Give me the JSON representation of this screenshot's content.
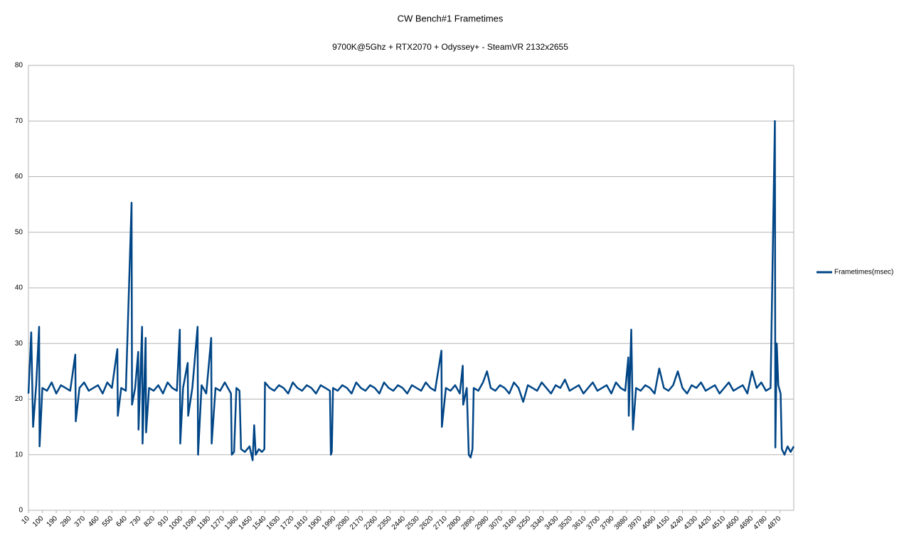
{
  "chart_data": {
    "type": "line",
    "title": "CW Bench#1 Frametimes",
    "subtitle": "9700K@5Ghz + RTX2070 + Odyssey+ - SteamVR 2132x2655",
    "x": [
      10,
      28,
      40,
      60,
      79,
      82,
      100,
      130,
      160,
      190,
      220,
      250,
      280,
      313,
      316,
      340,
      370,
      400,
      430,
      460,
      490,
      520,
      550,
      585,
      588,
      610,
      640,
      677,
      680,
      700,
      720,
      722,
      745,
      748,
      768,
      771,
      790,
      820,
      850,
      880,
      910,
      940,
      970,
      989,
      992,
      1010,
      1040,
      1043,
      1070,
      1104,
      1107,
      1130,
      1160,
      1192,
      1195,
      1220,
      1250,
      1280,
      1300,
      1320,
      1325,
      1340,
      1355,
      1375,
      1385,
      1410,
      1440,
      1460,
      1470,
      1480,
      1500,
      1520,
      1536,
      1540,
      1570,
      1600,
      1630,
      1660,
      1690,
      1720,
      1750,
      1780,
      1810,
      1840,
      1870,
      1900,
      1930,
      1960,
      1966,
      1972,
      1980,
      2010,
      2040,
      2070,
      2100,
      2130,
      2160,
      2190,
      2220,
      2250,
      2280,
      2310,
      2340,
      2370,
      2400,
      2430,
      2460,
      2490,
      2520,
      2550,
      2580,
      2610,
      2640,
      2681,
      2684,
      2710,
      2740,
      2770,
      2800,
      2819,
      2822,
      2845,
      2858,
      2870,
      2882,
      2890,
      2920,
      2950,
      2976,
      3000,
      3030,
      3060,
      3090,
      3120,
      3150,
      3180,
      3210,
      3240,
      3270,
      3300,
      3330,
      3360,
      3390,
      3420,
      3450,
      3480,
      3510,
      3540,
      3570,
      3600,
      3630,
      3660,
      3690,
      3720,
      3750,
      3780,
      3810,
      3840,
      3870,
      3890,
      3893,
      3909,
      3920,
      3940,
      3970,
      4000,
      4030,
      4060,
      4090,
      4120,
      4150,
      4180,
      4210,
      4240,
      4270,
      4300,
      4330,
      4360,
      4390,
      4420,
      4450,
      4480,
      4510,
      4540,
      4570,
      4600,
      4630,
      4660,
      4690,
      4720,
      4750,
      4780,
      4810,
      4838,
      4841,
      4850,
      4860,
      4875,
      4883,
      4900,
      4920,
      4940,
      4960
    ],
    "series": [
      {
        "name": "Frametimes(msec)",
        "color": "#004586",
        "values": [
          21,
          32,
          15,
          22.5,
          33,
          11.5,
          22,
          21.5,
          23,
          21,
          22.5,
          22,
          21.5,
          28,
          16,
          22,
          23,
          21.5,
          22,
          22.5,
          21,
          23,
          22,
          29,
          17,
          22,
          21.5,
          55.3,
          19,
          22,
          28.5,
          14.5,
          33,
          12,
          31,
          14,
          22,
          21.5,
          22.5,
          21,
          23,
          22,
          21.5,
          32.5,
          12,
          22,
          26.5,
          17,
          22,
          33,
          10,
          22.5,
          21,
          31,
          12,
          22,
          21.5,
          23,
          22,
          21,
          10,
          10.5,
          22,
          21.5,
          11,
          10.5,
          11.5,
          9,
          15.3,
          10,
          11,
          10.5,
          11,
          23,
          22,
          21.5,
          22.5,
          22,
          21,
          23,
          22,
          21.5,
          22.5,
          22,
          21,
          22.5,
          22,
          21.5,
          10,
          10.5,
          22,
          21.5,
          22.5,
          22,
          21,
          23,
          22,
          21.5,
          22.5,
          22,
          21,
          23,
          22,
          21.5,
          22.5,
          22,
          21,
          22.5,
          22,
          21.5,
          23,
          22,
          21.5,
          28.7,
          15,
          22,
          21.5,
          22.5,
          21,
          26,
          19,
          22,
          10,
          9.5,
          11,
          22,
          21.5,
          23,
          25,
          22,
          21.5,
          22.5,
          22,
          21,
          23,
          22,
          19.5,
          22.5,
          22,
          21.5,
          23,
          22,
          21,
          22.5,
          22,
          23.5,
          21.5,
          22,
          22.5,
          21,
          22,
          23,
          21.5,
          22,
          22.5,
          21,
          23,
          22,
          21.5,
          27.5,
          17,
          32.5,
          14.5,
          22,
          21.5,
          22.5,
          22,
          21,
          25.5,
          22,
          21.5,
          22.5,
          25,
          22,
          21,
          22.5,
          22,
          23,
          21.5,
          22,
          22.5,
          21,
          22,
          23,
          21.5,
          22,
          22.5,
          21,
          25,
          22,
          23,
          21.5,
          22,
          70,
          11.3,
          30,
          22.5,
          21,
          11,
          10,
          11.5,
          10.5,
          11.5
        ]
      }
    ],
    "xlim": [
      10,
      4960
    ],
    "xticks": [
      10,
      100,
      190,
      280,
      370,
      460,
      550,
      640,
      730,
      820,
      910,
      1000,
      1090,
      1180,
      1270,
      1360,
      1450,
      1540,
      1630,
      1720,
      1810,
      1900,
      1990,
      2080,
      2170,
      2260,
      2350,
      2440,
      2530,
      2620,
      2710,
      2800,
      2890,
      2980,
      3070,
      3160,
      3250,
      3340,
      3430,
      3520,
      3610,
      3700,
      3790,
      3880,
      3970,
      4060,
      4150,
      4240,
      4330,
      4420,
      4510,
      4600,
      4690,
      4780,
      4870
    ],
    "ylim": [
      0,
      80
    ],
    "yticks": [
      0,
      10,
      20,
      30,
      40,
      50,
      60,
      70,
      80
    ],
    "grid": true,
    "legend": "right"
  }
}
